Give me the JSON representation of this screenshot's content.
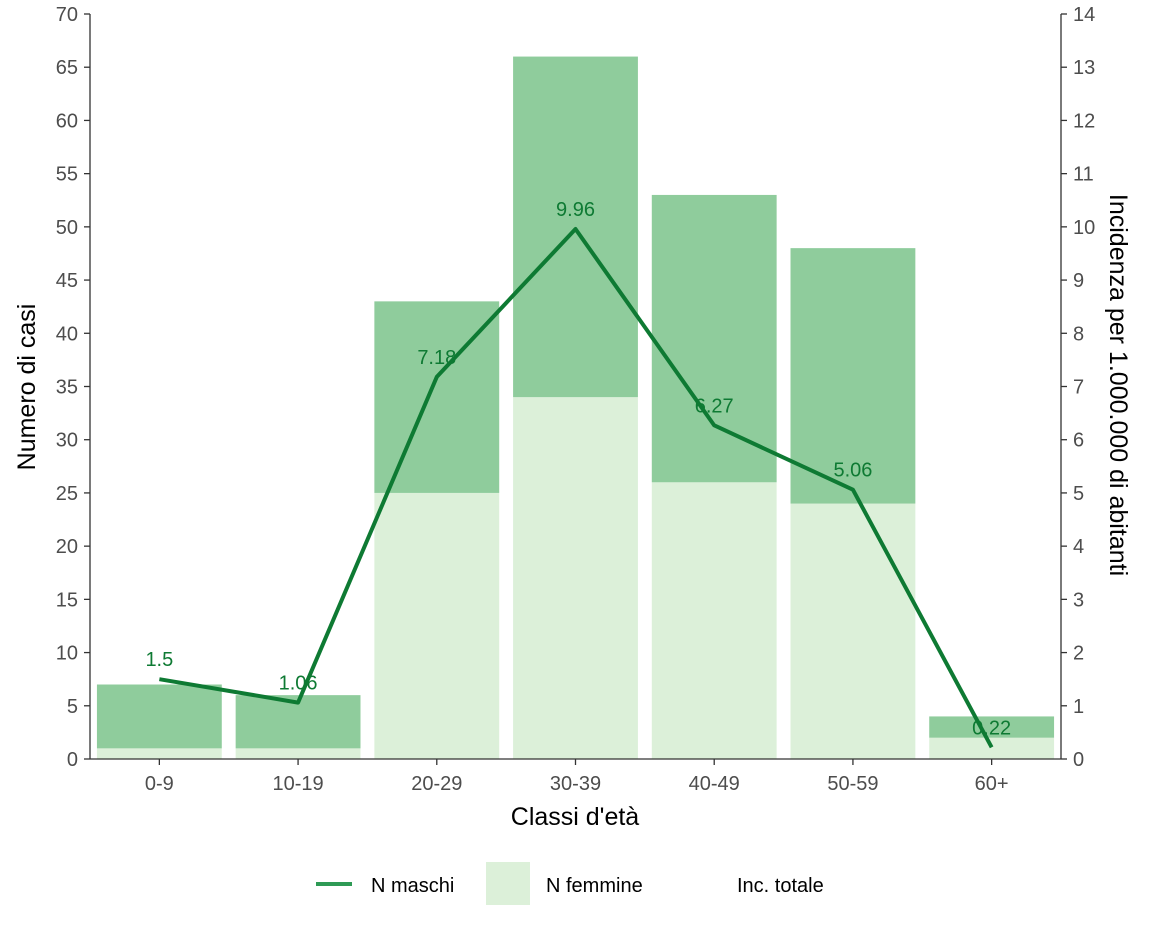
{
  "chart_data": {
    "type": "bar",
    "categories": [
      "0-9",
      "10-19",
      "20-29",
      "30-39",
      "40-49",
      "50-59",
      "60+"
    ],
    "series": [
      {
        "name": "N femmine",
        "kind": "bar",
        "stack": "base",
        "values": [
          1,
          1,
          25,
          34,
          26,
          24,
          2
        ],
        "color": "#dcf0d9"
      },
      {
        "name": "N maschi",
        "kind": "bar",
        "stack": "top",
        "values": [
          6,
          5,
          18,
          32,
          27,
          24,
          2
        ],
        "color": "#8fcc9c"
      },
      {
        "name": "Inc. totale",
        "kind": "line",
        "axis": "right",
        "values": [
          1.5,
          1.06,
          7.18,
          9.96,
          6.27,
          5.06,
          0.22
        ],
        "labels": [
          "1.5",
          "1.06",
          "7.18",
          "9.96",
          "6.27",
          "5.06",
          "0.22"
        ],
        "color": "#0e7a33"
      }
    ],
    "xlabel": "Classi d'età",
    "ylabel": "Numero di casi",
    "y2label": "Incidenza per 1.000.000 di abitanti",
    "ylim": [
      0,
      70
    ],
    "y2lim": [
      0,
      14
    ],
    "yticks": [
      "0",
      "5",
      "10",
      "15",
      "20",
      "25",
      "30",
      "35",
      "40",
      "45",
      "50",
      "55",
      "60",
      "65",
      "70"
    ],
    "y2ticks": [
      "0",
      "1",
      "2",
      "3",
      "4",
      "5",
      "6",
      "7",
      "8",
      "9",
      "10",
      "11",
      "12",
      "13",
      "14"
    ],
    "grid": false,
    "legend_position": "bottom",
    "legend": [
      {
        "label": "N maschi",
        "symbol": "line",
        "color": "#2e9a55"
      },
      {
        "label": "N femmine",
        "symbol": "fill",
        "color": "#dcf0d9"
      },
      {
        "label": "Inc. totale",
        "symbol": "none",
        "color": "#ffffff"
      }
    ]
  }
}
